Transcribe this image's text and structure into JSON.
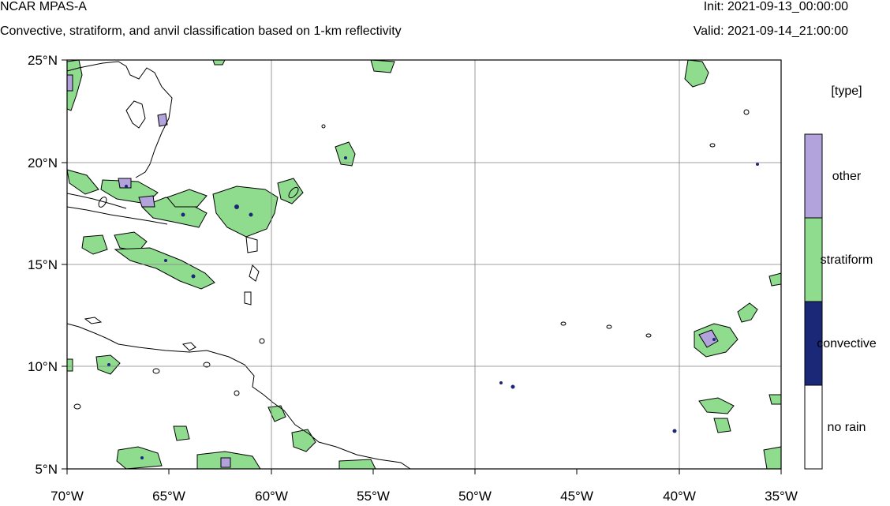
{
  "header": {
    "title": "NCAR MPAS-A",
    "subtitle": "Convective, stratiform, and anvil classification based on 1-km reflectivity",
    "init": "Init: 2021-09-13_00:00:00",
    "valid": "Valid: 2021-09-14_21:00:00"
  },
  "map": {
    "lon_ticks": [
      "70°W",
      "65°W",
      "60°W",
      "55°W",
      "50°W",
      "45°W",
      "40°W",
      "35°W"
    ],
    "lat_ticks": [
      "25°N",
      "20°N",
      "15°N",
      "10°N",
      "5°N"
    ],
    "lon_range": [
      -70,
      -35
    ],
    "lat_range": [
      5,
      25
    ],
    "colors": {
      "other": "#b3a3dc",
      "stratiform": "#8fdc8f",
      "convective": "#1b2877",
      "no_rain": "#ffffff",
      "grid": "#808080",
      "coast": "#000000"
    }
  },
  "legend": {
    "title": "[type]",
    "categories": [
      {
        "label": "other",
        "color": "#b3a3dc"
      },
      {
        "label": "stratiform",
        "color": "#8fdc8f"
      },
      {
        "label": "convective",
        "color": "#1b2877"
      },
      {
        "label": "no rain",
        "color": "#ffffff"
      }
    ]
  }
}
